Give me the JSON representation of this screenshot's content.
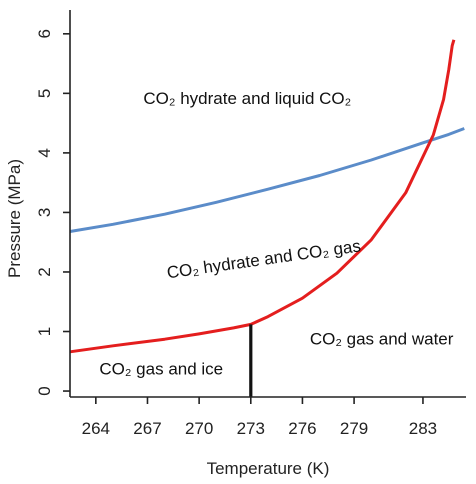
{
  "chart_data": {
    "type": "line",
    "title": "",
    "xlabel": "Temperature (K)",
    "ylabel": "Pressure (MPa)",
    "xlim": [
      262.5,
      285.5
    ],
    "ylim": [
      -0.1,
      6.4
    ],
    "x_ticks": [
      264,
      267,
      270,
      273,
      276,
      279,
      283
    ],
    "x_tick_labels": [
      "264",
      "267",
      "270",
      "273",
      "276",
      "279",
      "283"
    ],
    "y_ticks": [
      0,
      1,
      2,
      3,
      4,
      5,
      6
    ],
    "y_tick_labels": [
      "0",
      "1",
      "2",
      "3",
      "4",
      "5",
      "6"
    ],
    "grid": false,
    "series": [
      {
        "color": "#5b8cc9",
        "x": [
          262.5,
          265,
          268,
          271,
          274,
          277,
          280,
          283,
          284.5,
          285.4
        ],
        "y": [
          2.68,
          2.8,
          2.97,
          3.17,
          3.39,
          3.62,
          3.88,
          4.17,
          4.31,
          4.41
        ]
      },
      {
        "color": "#e41e1e",
        "x": [
          262.5,
          265,
          268,
          270,
          272,
          273,
          274,
          276,
          278,
          280,
          282,
          283.6,
          284.2,
          284.5,
          284.7,
          284.8
        ],
        "y": [
          0.66,
          0.76,
          0.87,
          0.96,
          1.06,
          1.12,
          1.25,
          1.56,
          1.98,
          2.54,
          3.33,
          4.3,
          4.9,
          5.4,
          5.8,
          5.9
        ]
      },
      {
        "color": "#111111",
        "x": [
          273,
          273
        ],
        "y": [
          -0.1,
          1.12
        ]
      }
    ],
    "annotations": [
      {
        "text": "CO₂ hydrate and liquid CO₂",
        "x": 272.8,
        "y": 4.82,
        "rotate": 0
      },
      {
        "text": "CO₂ hydrate and CO₂ gas",
        "x": 273.8,
        "y": 2.12,
        "rotate": -8
      },
      {
        "text": "CO₂ gas and water",
        "x": 280.6,
        "y": 0.78,
        "rotate": 0
      },
      {
        "text": "CO₂ gas and ice",
        "x": 267.8,
        "y": 0.28,
        "rotate": 0
      }
    ]
  }
}
